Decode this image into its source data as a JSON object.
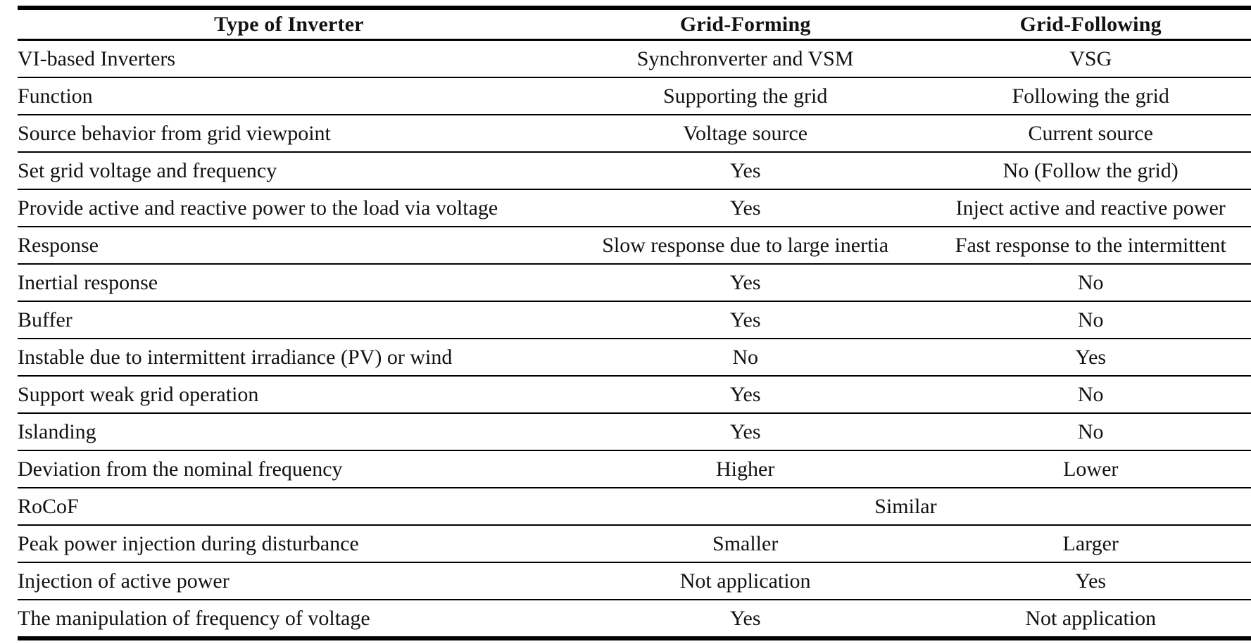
{
  "table": {
    "columns": [
      "Type of Inverter",
      "Grid-Forming",
      "Grid-Following"
    ],
    "rows": [
      {
        "label": "VI-based Inverters",
        "grid_forming": "Synchronverter and VSM",
        "grid_following": "VSG"
      },
      {
        "label": "Function",
        "grid_forming": "Supporting the grid",
        "grid_following": "Following the grid"
      },
      {
        "label": "Source behavior from grid viewpoint",
        "grid_forming": "Voltage source",
        "grid_following": "Current source"
      },
      {
        "label": "Set grid voltage and frequency",
        "grid_forming": "Yes",
        "grid_following": "No (Follow the grid)"
      },
      {
        "label": "Provide active and reactive power to the load via voltage",
        "grid_forming": "Yes",
        "grid_following": "Inject active and reactive power"
      },
      {
        "label": "Response",
        "grid_forming": "Slow response due to large inertia",
        "grid_following": "Fast response to the intermittent"
      },
      {
        "label": "Inertial response",
        "grid_forming": "Yes",
        "grid_following": "No"
      },
      {
        "label": "Buffer",
        "grid_forming": "Yes",
        "grid_following": "No"
      },
      {
        "label": "Instable due to intermittent irradiance (PV) or wind",
        "grid_forming": "No",
        "grid_following": "Yes"
      },
      {
        "label": "Support weak grid operation",
        "grid_forming": "Yes",
        "grid_following": "No"
      },
      {
        "label": "Islanding",
        "grid_forming": "Yes",
        "grid_following": "No"
      },
      {
        "label": "Deviation from the nominal frequency",
        "grid_forming": "Higher",
        "grid_following": "Lower"
      },
      {
        "label": "RoCoF",
        "span": "Similar"
      },
      {
        "label": "Peak power injection during disturbance",
        "grid_forming": "Smaller",
        "grid_following": "Larger"
      },
      {
        "label": "Injection of active power",
        "grid_forming": "Not application",
        "grid_following": "Yes"
      },
      {
        "label": "The manipulation of frequency of voltage",
        "grid_forming": "Yes",
        "grid_following": "Not application"
      }
    ]
  }
}
